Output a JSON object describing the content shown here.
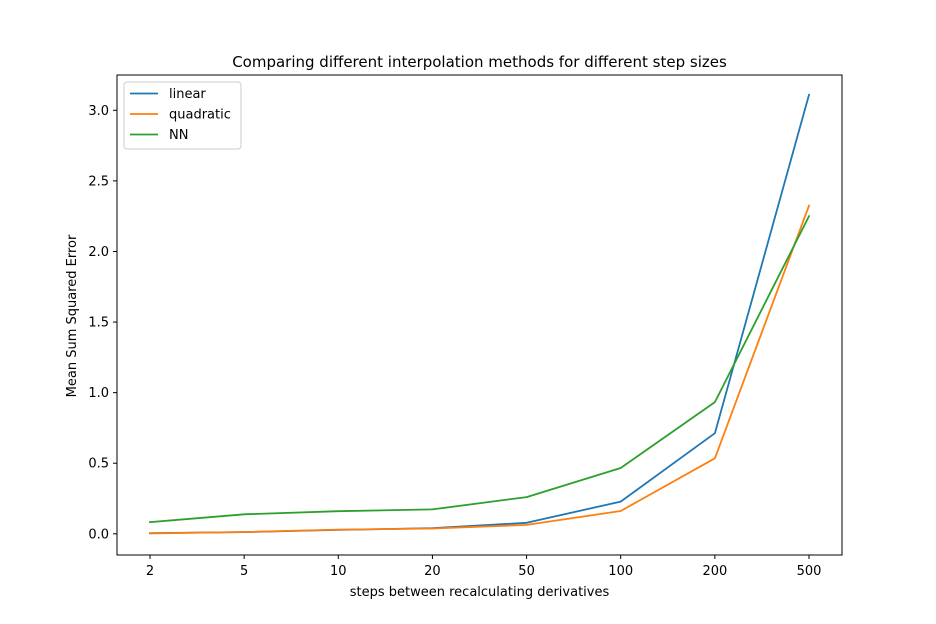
{
  "chart_data": {
    "type": "line",
    "title": "Comparing different interpolation methods for different step sizes",
    "xlabel": "steps between recalculating derivatives",
    "ylabel": "Mean Sum Squared Error",
    "categories": [
      "2",
      "5",
      "10",
      "20",
      "50",
      "100",
      "200",
      "500"
    ],
    "ylim": [
      -0.15,
      3.25
    ],
    "yticks": [
      "0.0",
      "0.5",
      "1.0",
      "1.5",
      "2.0",
      "2.5",
      "3.0"
    ],
    "grid": false,
    "legend_position": "top-left",
    "series": [
      {
        "name": "linear",
        "color": "#1f77b4",
        "values": [
          0.005,
          0.012,
          0.028,
          0.04,
          0.078,
          0.228,
          0.713,
          3.11
        ]
      },
      {
        "name": "quadratic",
        "color": "#ff7f0e",
        "values": [
          0.003,
          0.013,
          0.03,
          0.038,
          0.063,
          0.162,
          0.535,
          2.325
        ]
      },
      {
        "name": "NN",
        "color": "#2ca02c",
        "values": [
          0.083,
          0.138,
          0.16,
          0.173,
          0.26,
          0.466,
          0.933,
          2.25
        ]
      }
    ]
  }
}
